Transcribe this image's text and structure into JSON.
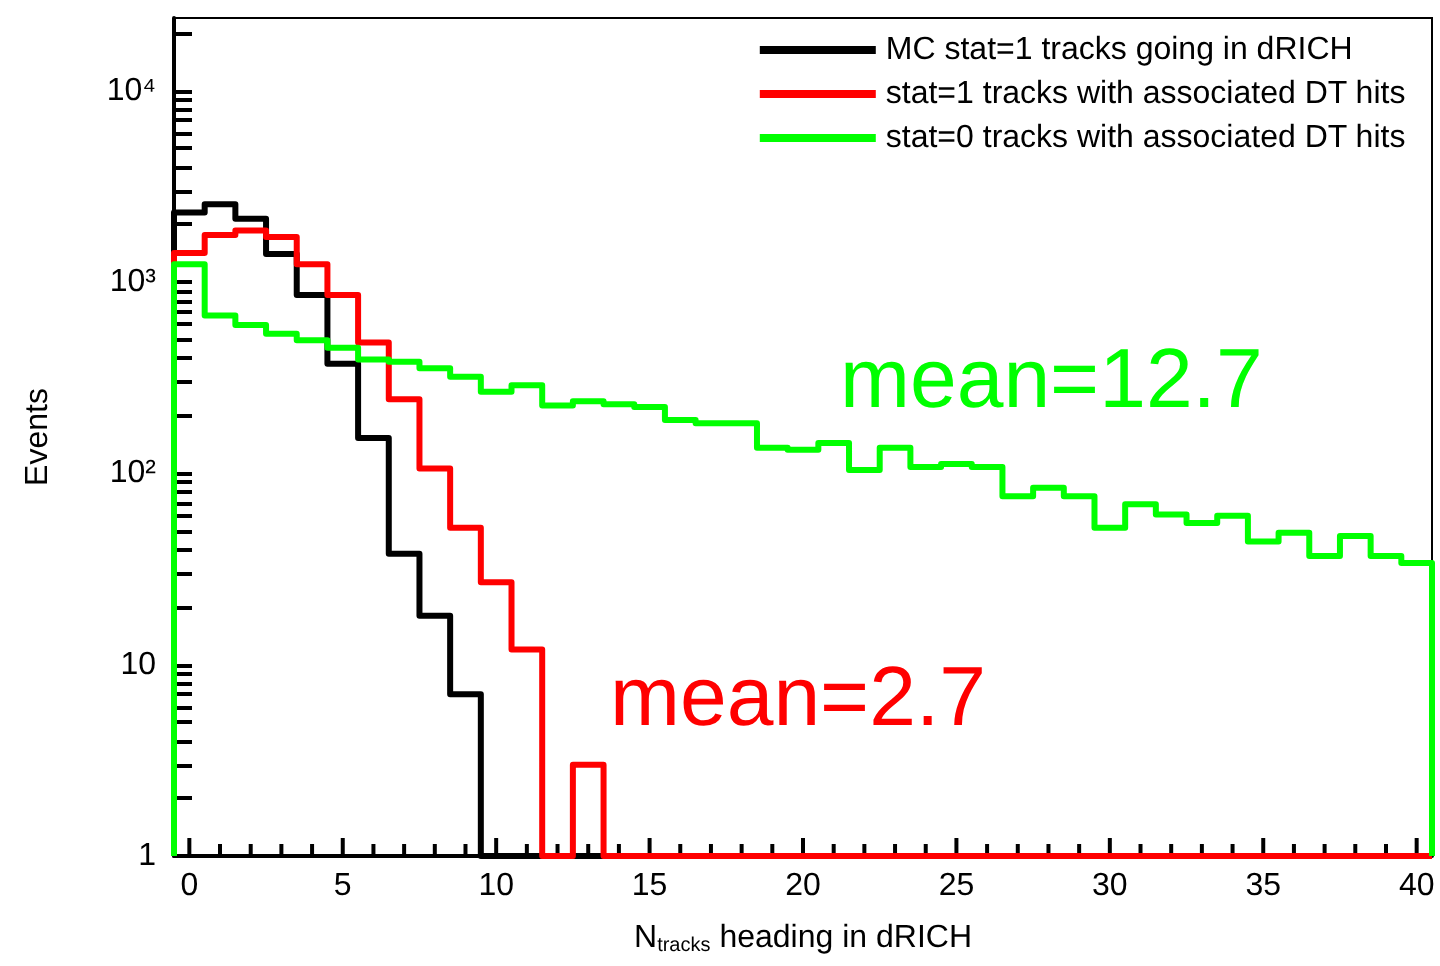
{
  "chart_data": {
    "type": "histogram",
    "xlabel": "N$_{tracks}$ heading in dRICH",
    "ylabel": "Events",
    "log": "y",
    "legend": "top right",
    "bins": [
      -0.5,
      0.5,
      1.5,
      2.5,
      3.5,
      4.5,
      5.5,
      6.5,
      7.5,
      8.5,
      9.5,
      10.5,
      11.5,
      12.5,
      13.5,
      14.5,
      15.5,
      16.5,
      17.5,
      18.5,
      19.5,
      20.5,
      21.5,
      22.5,
      23.5,
      24.5,
      25.5,
      26.5,
      27.5,
      28.5,
      29.5,
      30.5,
      31.5,
      32.5,
      33.5,
      34.5,
      35.5,
      36.5,
      37.5,
      38.5,
      39.5,
      40.5
    ],
    "series": [
      {
        "name": "MC stat=1 tracks going in dRICH",
        "color": "#000000",
        "values": [
          2310,
          2550,
          2140,
          1400,
          855,
          374,
          153,
          38,
          18,
          7,
          null,
          null,
          null,
          null,
          null,
          null,
          null,
          null,
          null,
          null,
          null,
          null,
          null,
          null,
          null,
          null,
          null,
          null,
          null,
          null,
          null,
          null,
          null,
          null,
          null,
          null,
          null,
          null,
          null,
          null,
          null
        ]
      },
      {
        "name": "stat=1 tracks with associated DT hits",
        "color": "#ff0000",
        "values": [
          1420,
          1760,
          1860,
          1720,
          1240,
          855,
          483,
          244,
          106,
          52,
          27,
          12,
          null,
          3,
          null,
          null,
          null,
          null,
          null,
          null,
          null,
          null,
          null,
          null,
          null,
          null,
          null,
          null,
          null,
          null,
          null,
          null,
          null,
          null,
          null,
          null,
          null,
          null,
          null,
          null,
          null
        ]
      },
      {
        "name": "stat=0 tracks with associated DT hits",
        "color": "#00ff00",
        "values": [
          1240,
          669,
          596,
          537,
          497,
          454,
          394,
          383,
          354,
          320,
          267,
          289,
          226,
          238,
          230,
          222,
          190,
          183,
          183,
          136,
          133,
          144,
          104,
          136,
          108,
          112,
          108,
          76,
          84,
          76,
          52,
          69,
          61,
          55,
          60,
          44,
          49,
          37,
          47,
          37,
          34
        ]
      }
    ],
    "xlim": [
      -0.5,
      40.5
    ],
    "xticks": [
      0,
      {
        "value": 1,
        "label": null
      },
      {
        "value": 2,
        "label": null
      },
      {
        "value": 3,
        "label": null
      },
      {
        "value": 4,
        "label": null
      },
      5,
      {
        "value": 6,
        "label": null
      },
      {
        "value": 7,
        "label": null
      },
      {
        "value": 8,
        "label": null
      },
      {
        "value": 9,
        "label": null
      },
      10,
      {
        "value": 11,
        "label": null
      },
      {
        "value": 12,
        "label": null
      },
      {
        "value": 13,
        "label": null
      },
      {
        "value": 14,
        "label": null
      },
      15,
      {
        "value": 16,
        "label": null
      },
      {
        "value": 17,
        "label": null
      },
      {
        "value": 18,
        "label": null
      },
      {
        "value": 19,
        "label": null
      },
      20,
      {
        "value": 21,
        "label": null
      },
      {
        "value": 22,
        "label": null
      },
      {
        "value": 23,
        "label": null
      },
      {
        "value": 24,
        "label": null
      },
      25,
      {
        "value": 26,
        "label": null
      },
      {
        "value": 27,
        "label": null
      },
      {
        "value": 28,
        "label": null
      },
      {
        "value": 29,
        "label": null
      },
      30,
      {
        "value": 31,
        "label": null
      },
      {
        "value": 32,
        "label": null
      },
      {
        "value": 33,
        "label": null
      },
      {
        "value": 34,
        "label": null
      },
      35,
      {
        "value": 36,
        "label": null
      },
      {
        "value": 37,
        "label": null
      },
      {
        "value": 38,
        "label": null
      },
      {
        "value": 39,
        "label": null
      },
      40
    ],
    "ylim": [
      1,
      24000
    ],
    "yticks": [
      1,
      {
        "value": 2,
        "label": null
      },
      {
        "value": 3,
        "label": null
      },
      {
        "value": 4,
        "label": null
      },
      {
        "value": 5,
        "label": null
      },
      {
        "value": 6,
        "label": null
      },
      {
        "value": 7,
        "label": null
      },
      {
        "value": 8,
        "label": null
      },
      {
        "value": 9,
        "label": null
      },
      10,
      {
        "value": 20,
        "label": null
      },
      {
        "value": 30,
        "label": null
      },
      {
        "value": 40,
        "label": null
      },
      {
        "value": 50,
        "label": null
      },
      {
        "value": 60,
        "label": null
      },
      {
        "value": 70,
        "label": null
      },
      {
        "value": 80,
        "label": null
      },
      {
        "value": 90,
        "label": null
      },
      {
        "value": 100,
        "label": "10²"
      },
      {
        "value": 200,
        "label": null
      },
      {
        "value": 300,
        "label": null
      },
      {
        "value": 400,
        "label": null
      },
      {
        "value": 500,
        "label": null
      },
      {
        "value": 600,
        "label": null
      },
      {
        "value": 700,
        "label": null
      },
      {
        "value": 800,
        "label": null
      },
      {
        "value": 900,
        "label": null
      },
      {
        "value": 1000,
        "label": "10³"
      },
      {
        "value": 2000,
        "label": null
      },
      {
        "value": 3000,
        "label": null
      },
      {
        "value": 4000,
        "label": null
      },
      {
        "value": 5000,
        "label": null
      },
      {
        "value": 6000,
        "label": null
      },
      {
        "value": 7000,
        "label": null
      },
      {
        "value": 8000,
        "label": null
      },
      {
        "value": 9000,
        "label": null
      },
      {
        "value": 10000,
        "label": "10⁴"
      },
      {
        "value": 20000,
        "label": null
      }
    ],
    "annotations": [
      "mean=12.7",
      "mean=2.7"
    ]
  }
}
